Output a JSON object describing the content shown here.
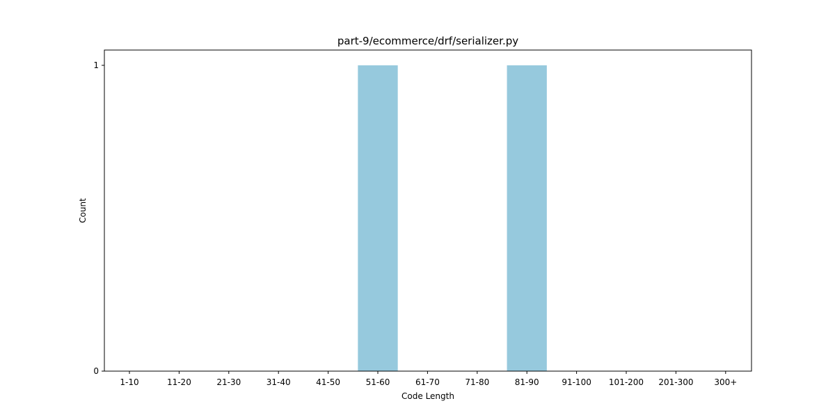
{
  "chart_data": {
    "type": "bar",
    "title": "part-9/ecommerce/drf/serializer.py",
    "xlabel": "Code Length",
    "ylabel": "Count",
    "categories": [
      "1-10",
      "11-20",
      "21-30",
      "31-40",
      "41-50",
      "51-60",
      "61-70",
      "71-80",
      "81-90",
      "91-100",
      "101-200",
      "201-300",
      "300+"
    ],
    "values": [
      0,
      0,
      0,
      0,
      0,
      1,
      0,
      0,
      1,
      0,
      0,
      0,
      0
    ],
    "ylim": [
      0,
      1.05
    ],
    "yticks": [
      0,
      1
    ],
    "grid": false,
    "legend": "none",
    "bar_color": "#96c9dd"
  }
}
